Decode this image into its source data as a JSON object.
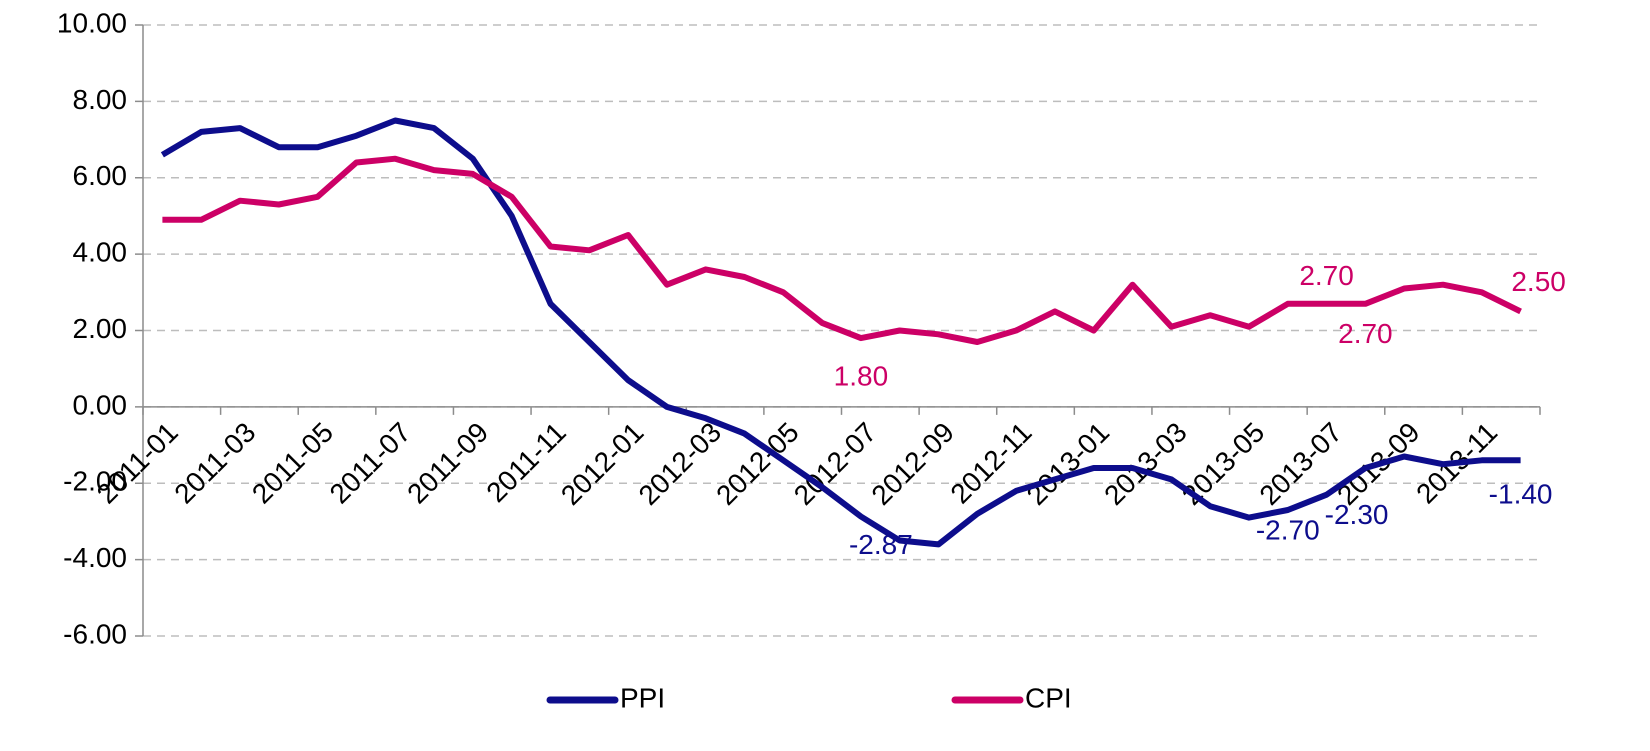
{
  "chart_data": {
    "type": "line",
    "categories": [
      "2011-01",
      null,
      "2011-03",
      null,
      "2011-05",
      null,
      "2011-07",
      null,
      "2011-09",
      null,
      "2011-11",
      null,
      "2012-01",
      null,
      "2012-03",
      null,
      "2012-05",
      null,
      "2012-07",
      null,
      "2012-09",
      null,
      "2012-11",
      null,
      "2013-01",
      null,
      "2013-03",
      null,
      "2013-05",
      null,
      "2013-07",
      null,
      "2013-09",
      null,
      "2013-11",
      null
    ],
    "series": [
      {
        "name": "PPI",
        "color": "#0d0d8c",
        "values": [
          6.6,
          7.2,
          7.3,
          6.8,
          6.8,
          7.1,
          7.5,
          7.3,
          6.5,
          5.0,
          2.7,
          1.7,
          0.7,
          0.0,
          -0.3,
          -0.7,
          -1.4,
          -2.1,
          -2.87,
          -3.5,
          -3.6,
          -2.8,
          -2.2,
          -1.9,
          -1.6,
          -1.6,
          -1.9,
          -2.6,
          -2.9,
          -2.7,
          -2.3,
          -1.6,
          -1.3,
          -1.5,
          -1.4,
          -1.4
        ],
        "value_labels": [
          null,
          null,
          null,
          null,
          null,
          null,
          null,
          null,
          null,
          null,
          null,
          null,
          null,
          null,
          null,
          null,
          null,
          null,
          "-2.87",
          null,
          null,
          null,
          null,
          null,
          null,
          null,
          null,
          null,
          null,
          "-2.70",
          "-2.30",
          null,
          null,
          null,
          null,
          "-1.40"
        ]
      },
      {
        "name": "CPI",
        "color": "#cc0066",
        "values": [
          4.9,
          4.9,
          5.4,
          5.3,
          5.5,
          6.4,
          6.5,
          6.2,
          6.1,
          5.5,
          4.2,
          4.1,
          4.5,
          3.2,
          3.6,
          3.4,
          3.0,
          2.2,
          1.8,
          2.0,
          1.9,
          1.7,
          2.0,
          2.5,
          2.0,
          3.2,
          2.1,
          2.4,
          2.1,
          2.7,
          2.7,
          2.7,
          3.1,
          3.2,
          3.0,
          2.5
        ],
        "value_labels": [
          null,
          null,
          null,
          null,
          null,
          null,
          null,
          null,
          null,
          null,
          null,
          null,
          null,
          null,
          null,
          null,
          null,
          null,
          "1.80",
          null,
          null,
          null,
          null,
          null,
          null,
          null,
          null,
          null,
          null,
          null,
          "2.70",
          "2.70",
          null,
          null,
          null,
          "2.50"
        ]
      }
    ],
    "ylim": [
      -6,
      10
    ],
    "yticks": [
      {
        "value": -6,
        "label": "-6.00"
      },
      {
        "value": -4,
        "label": "-4.00"
      },
      {
        "value": -2,
        "label": "-2.00"
      },
      {
        "value": 0,
        "label": "0.00"
      },
      {
        "value": 2,
        "label": "2.00"
      },
      {
        "value": 4,
        "label": "4.00"
      },
      {
        "value": 6,
        "label": "6.00"
      },
      {
        "value": 8,
        "label": "8.00"
      },
      {
        "value": 10,
        "label": "10.00"
      }
    ],
    "grid": true,
    "legend": "bottom"
  }
}
